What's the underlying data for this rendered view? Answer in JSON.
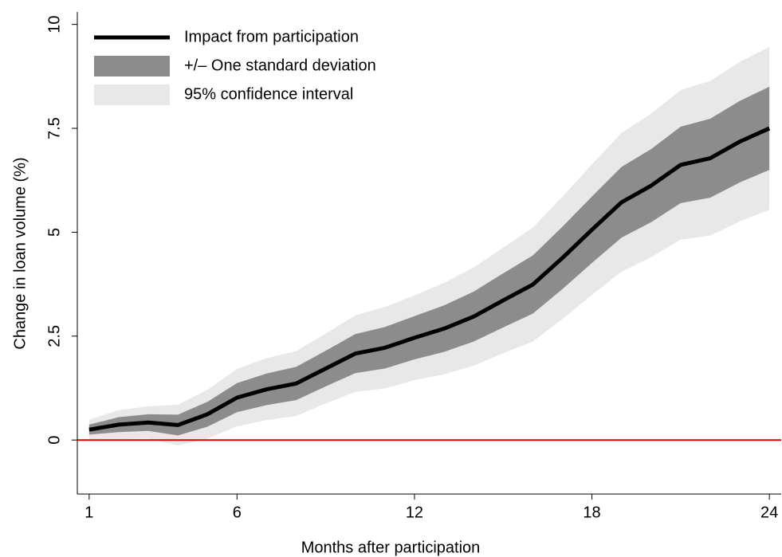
{
  "chart_data": {
    "type": "line",
    "x_label": "Months after participation",
    "y_label": "Change in loan volume (%)",
    "x": [
      1,
      2,
      3,
      4,
      5,
      6,
      7,
      8,
      9,
      10,
      11,
      12,
      13,
      14,
      15,
      16,
      17,
      18,
      19,
      20,
      21,
      22,
      23,
      24
    ],
    "series": [
      {
        "name": "Impact from participation",
        "color": "#000000",
        "values": [
          0.25,
          0.37,
          0.42,
          0.36,
          0.62,
          1.02,
          1.22,
          1.36,
          1.72,
          2.08,
          2.22,
          2.46,
          2.68,
          2.97,
          3.36,
          3.74,
          4.38,
          5.06,
          5.72,
          6.12,
          6.62,
          6.78,
          7.18,
          7.5
        ]
      },
      {
        "name": "+/– One standard deviation",
        "color": "#8c8c8c",
        "lower": [
          0.13,
          0.19,
          0.22,
          0.11,
          0.32,
          0.67,
          0.84,
          0.96,
          1.29,
          1.61,
          1.72,
          1.94,
          2.12,
          2.37,
          2.71,
          3.04,
          3.63,
          4.26,
          4.87,
          5.24,
          5.7,
          5.83,
          6.2,
          6.5
        ],
        "upper": [
          0.37,
          0.55,
          0.62,
          0.61,
          0.92,
          1.37,
          1.6,
          1.76,
          2.15,
          2.55,
          2.72,
          2.98,
          3.24,
          3.57,
          4.01,
          4.44,
          5.13,
          5.86,
          6.57,
          7.0,
          7.54,
          7.73,
          8.16,
          8.5
        ]
      },
      {
        "name": "95% confidence interval",
        "color": "#e8e8e8",
        "lower": [
          0.02,
          0.02,
          0.03,
          -0.13,
          0.03,
          0.33,
          0.48,
          0.58,
          0.88,
          1.16,
          1.24,
          1.44,
          1.58,
          1.79,
          2.09,
          2.37,
          2.91,
          3.49,
          4.05,
          4.4,
          4.82,
          4.92,
          5.26,
          5.54
        ],
        "upper": [
          0.49,
          0.72,
          0.81,
          0.85,
          1.21,
          1.71,
          1.97,
          2.14,
          2.56,
          3.0,
          3.2,
          3.48,
          3.78,
          4.15,
          4.63,
          5.11,
          5.85,
          6.63,
          7.39,
          7.85,
          8.42,
          8.64,
          9.1,
          9.46
        ]
      }
    ],
    "hline": 0,
    "hline_color": "#e00000",
    "xlim": [
      0.6,
      24.4
    ],
    "xticks": [
      1,
      6,
      12,
      18,
      24
    ],
    "ylim": [
      -1.3,
      10.3
    ],
    "yticks": [
      0,
      2.5,
      5,
      7.5,
      10
    ],
    "legend": "top-left"
  }
}
